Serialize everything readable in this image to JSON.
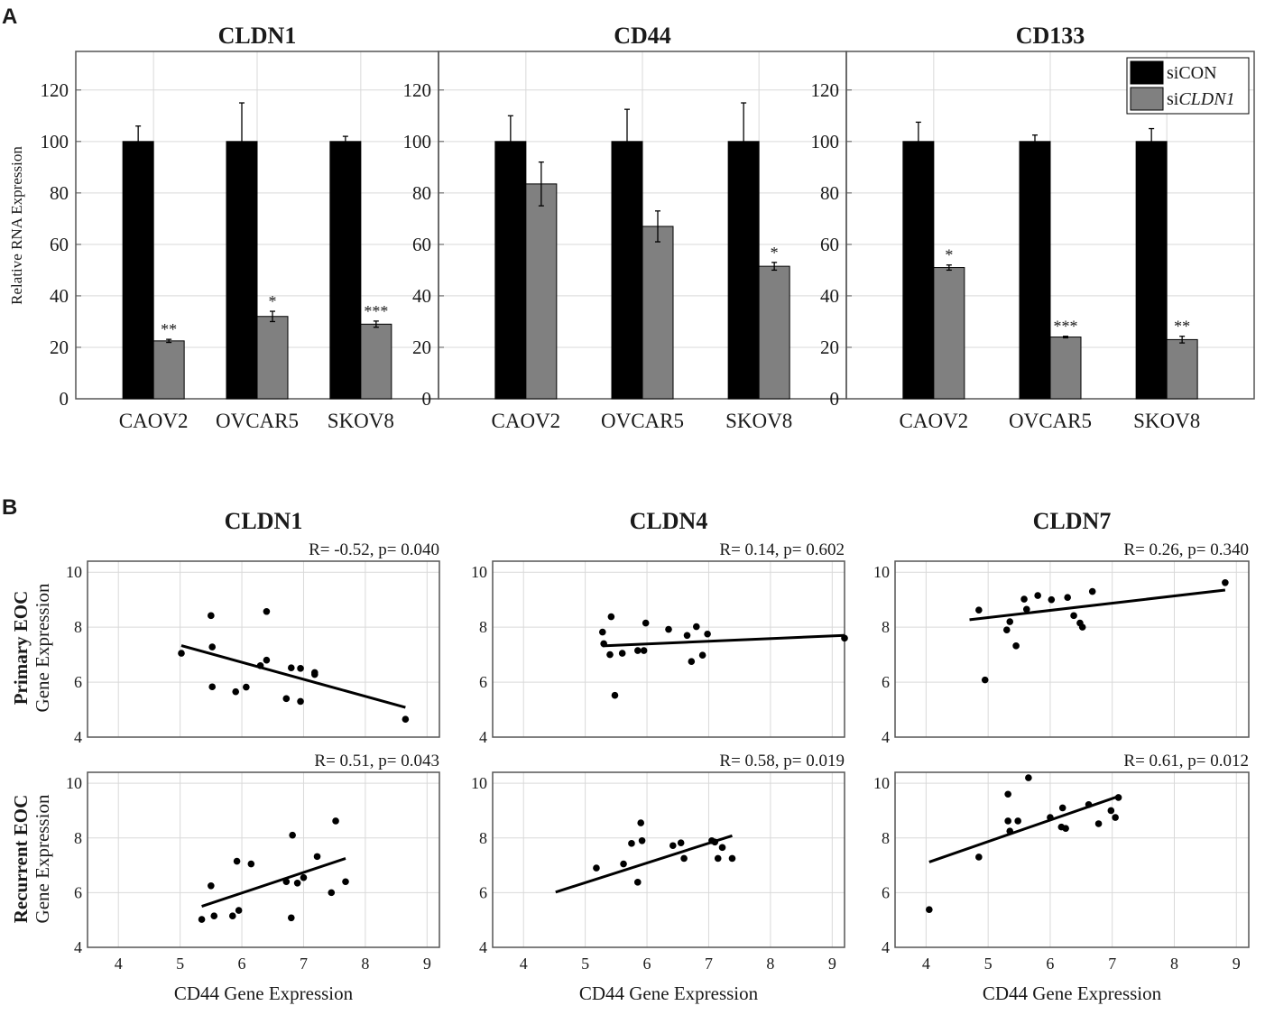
{
  "panel_labels": {
    "a": "A",
    "b": "B"
  },
  "colors": {
    "siCON": "#000000",
    "siCLDN1": "#808080",
    "grid": "#d9d9d9",
    "axis": "#555555"
  },
  "chart_data": [
    {
      "type": "bar",
      "panel": "A",
      "title": "CLDN1",
      "ylabel": "Relative RNA Expression",
      "ylim": [
        0,
        135
      ],
      "yticks": [
        0,
        20,
        40,
        60,
        80,
        100,
        120
      ],
      "categories": [
        "CAOV2",
        "OVCAR5",
        "SKOV8"
      ],
      "series": [
        {
          "name": "siCON",
          "values": [
            100,
            100,
            100
          ],
          "errors": [
            6,
            15,
            2
          ]
        },
        {
          "name": "siCLDN1",
          "values": [
            22.5,
            32,
            29
          ],
          "errors": [
            0.6,
            2,
            1.2
          ]
        }
      ],
      "significance": [
        "**",
        "*",
        "***"
      ]
    },
    {
      "type": "bar",
      "panel": "A",
      "title": "CD44",
      "ylim": [
        0,
        135
      ],
      "yticks": [
        0,
        20,
        40,
        60,
        80,
        100,
        120
      ],
      "categories": [
        "CAOV2",
        "OVCAR5",
        "SKOV8"
      ],
      "series": [
        {
          "name": "siCON",
          "values": [
            100,
            100,
            100
          ],
          "errors": [
            10,
            12.5,
            15
          ]
        },
        {
          "name": "siCLDN1",
          "values": [
            83.5,
            67,
            51.5
          ],
          "errors": [
            8.5,
            6,
            1.5
          ]
        }
      ],
      "significance": [
        "",
        "",
        "*"
      ]
    },
    {
      "type": "bar",
      "panel": "A",
      "title": "CD133",
      "ylim": [
        0,
        135
      ],
      "yticks": [
        0,
        20,
        40,
        60,
        80,
        100,
        120
      ],
      "categories": [
        "CAOV2",
        "OVCAR5",
        "SKOV8"
      ],
      "series": [
        {
          "name": "siCON",
          "values": [
            100,
            100,
            100
          ],
          "errors": [
            7.5,
            2.5,
            5
          ]
        },
        {
          "name": "siCLDN1",
          "values": [
            51,
            24,
            23
          ],
          "errors": [
            1,
            0.3,
            1.3
          ]
        }
      ],
      "significance": [
        "*",
        "***",
        "**"
      ],
      "legend": {
        "placement": "top-right",
        "entries": [
          {
            "prefix": "si",
            "name": "CON",
            "italic": false
          },
          {
            "prefix": "si",
            "name": "CLDN1",
            "italic": true
          }
        ]
      }
    },
    {
      "type": "scatter",
      "panel": "B",
      "title": "CLDN1",
      "row": "Primary EOC",
      "stat": "R= -0.52, p= 0.040",
      "xlim": [
        3.5,
        9.2
      ],
      "ylim": [
        4,
        10.4
      ],
      "xticks": [
        4,
        5,
        6,
        7,
        8,
        9
      ],
      "yticks": [
        4,
        6,
        8,
        10
      ],
      "points": [
        [
          5.02,
          7.05
        ],
        [
          5.5,
          8.42
        ],
        [
          5.52,
          7.28
        ],
        [
          5.52,
          5.83
        ],
        [
          5.9,
          5.65
        ],
        [
          6.07,
          5.82
        ],
        [
          6.3,
          6.6
        ],
        [
          6.4,
          8.57
        ],
        [
          6.4,
          6.8
        ],
        [
          6.72,
          5.4
        ],
        [
          6.8,
          6.52
        ],
        [
          6.95,
          6.5
        ],
        [
          6.95,
          5.3
        ],
        [
          7.18,
          6.35
        ],
        [
          7.18,
          6.28
        ],
        [
          8.65,
          4.65
        ]
      ],
      "fit": [
        [
          5.02,
          7.33
        ],
        [
          8.65,
          5.08
        ]
      ]
    },
    {
      "type": "scatter",
      "panel": "B",
      "title": "CLDN4",
      "row": "Primary EOC",
      "stat": "R= 0.14, p= 0.602",
      "xlim": [
        3.5,
        9.2
      ],
      "ylim": [
        4,
        10.4
      ],
      "xticks": [
        4,
        5,
        6,
        7,
        8,
        9
      ],
      "yticks": [
        4,
        6,
        8,
        10
      ],
      "points": [
        [
          5.28,
          7.82
        ],
        [
          5.3,
          7.4
        ],
        [
          5.4,
          7.0
        ],
        [
          5.42,
          8.38
        ],
        [
          5.48,
          5.52
        ],
        [
          5.6,
          7.05
        ],
        [
          5.85,
          7.15
        ],
        [
          5.95,
          7.15
        ],
        [
          5.98,
          8.15
        ],
        [
          6.35,
          7.92
        ],
        [
          6.65,
          7.7
        ],
        [
          6.72,
          6.75
        ],
        [
          6.8,
          8.02
        ],
        [
          6.9,
          6.98
        ],
        [
          6.98,
          7.75
        ],
        [
          9.2,
          7.6
        ]
      ],
      "fit": [
        [
          5.28,
          7.32
        ],
        [
          9.2,
          7.7
        ]
      ]
    },
    {
      "type": "scatter",
      "panel": "B",
      "title": "CLDN7",
      "row": "Primary EOC",
      "stat": "R= 0.26, p= 0.340",
      "xlim": [
        3.5,
        9.2
      ],
      "ylim": [
        4,
        10.4
      ],
      "xticks": [
        4,
        5,
        6,
        7,
        8,
        9
      ],
      "yticks": [
        4,
        6,
        8,
        10
      ],
      "points": [
        [
          4.85,
          8.62
        ],
        [
          4.95,
          6.08
        ],
        [
          5.3,
          7.9
        ],
        [
          5.35,
          8.2
        ],
        [
          5.45,
          7.32
        ],
        [
          5.58,
          9.02
        ],
        [
          5.62,
          8.65
        ],
        [
          5.8,
          9.15
        ],
        [
          6.02,
          9.0
        ],
        [
          6.28,
          9.08
        ],
        [
          6.38,
          8.42
        ],
        [
          6.48,
          8.15
        ],
        [
          6.52,
          8.0
        ],
        [
          6.68,
          9.3
        ],
        [
          8.82,
          9.62
        ]
      ],
      "fit": [
        [
          4.7,
          8.27
        ],
        [
          8.82,
          9.35
        ]
      ]
    },
    {
      "type": "scatter",
      "panel": "B",
      "title": "",
      "row": "Recurrent EOC",
      "stat": "R= 0.51, p= 0.043",
      "xlim": [
        3.5,
        9.2
      ],
      "ylim": [
        4,
        10.4
      ],
      "xticks": [
        4,
        5,
        6,
        7,
        8,
        9
      ],
      "yticks": [
        4,
        6,
        8,
        10
      ],
      "points": [
        [
          5.35,
          5.02
        ],
        [
          5.5,
          6.25
        ],
        [
          5.55,
          5.15
        ],
        [
          5.85,
          5.15
        ],
        [
          5.92,
          7.15
        ],
        [
          5.95,
          5.35
        ],
        [
          6.15,
          7.05
        ],
        [
          6.72,
          6.4
        ],
        [
          6.8,
          5.08
        ],
        [
          6.82,
          8.1
        ],
        [
          6.9,
          6.35
        ],
        [
          7.0,
          6.55
        ],
        [
          7.22,
          7.32
        ],
        [
          7.45,
          6.0
        ],
        [
          7.52,
          8.62
        ],
        [
          7.68,
          6.4
        ]
      ],
      "fit": [
        [
          5.35,
          5.5
        ],
        [
          7.68,
          7.25
        ]
      ]
    },
    {
      "type": "scatter",
      "panel": "B",
      "title": "",
      "row": "Recurrent EOC",
      "stat": "R= 0.58, p= 0.019",
      "xlim": [
        3.5,
        9.2
      ],
      "ylim": [
        4,
        10.4
      ],
      "xticks": [
        4,
        5,
        6,
        7,
        8,
        9
      ],
      "yticks": [
        4,
        6,
        8,
        10
      ],
      "points": [
        [
          5.18,
          6.9
        ],
        [
          5.62,
          7.05
        ],
        [
          5.75,
          7.8
        ],
        [
          5.85,
          6.38
        ],
        [
          5.9,
          8.55
        ],
        [
          5.92,
          7.9
        ],
        [
          6.42,
          7.72
        ],
        [
          6.55,
          7.82
        ],
        [
          6.6,
          7.25
        ],
        [
          7.05,
          7.9
        ],
        [
          7.1,
          7.85
        ],
        [
          7.15,
          7.25
        ],
        [
          7.22,
          7.65
        ],
        [
          7.38,
          7.25
        ]
      ],
      "fit": [
        [
          4.52,
          6.02
        ],
        [
          7.38,
          8.08
        ]
      ]
    },
    {
      "type": "scatter",
      "panel": "B",
      "title": "",
      "row": "Recurrent EOC",
      "stat": "R= 0.61, p= 0.012",
      "xlim": [
        3.5,
        9.2
      ],
      "ylim": [
        4,
        10.4
      ],
      "xticks": [
        4,
        5,
        6,
        7,
        8,
        9
      ],
      "yticks": [
        4,
        6,
        8,
        10
      ],
      "points": [
        [
          4.05,
          5.38
        ],
        [
          4.85,
          7.3
        ],
        [
          5.32,
          9.6
        ],
        [
          5.32,
          8.62
        ],
        [
          5.35,
          8.25
        ],
        [
          5.48,
          8.62
        ],
        [
          5.65,
          10.2
        ],
        [
          6.0,
          8.75
        ],
        [
          6.18,
          8.4
        ],
        [
          6.2,
          9.1
        ],
        [
          6.25,
          8.35
        ],
        [
          6.62,
          9.22
        ],
        [
          6.78,
          8.52
        ],
        [
          6.98,
          9.0
        ],
        [
          7.05,
          8.75
        ],
        [
          7.1,
          9.48
        ]
      ],
      "fit": [
        [
          4.05,
          7.12
        ],
        [
          7.1,
          9.52
        ]
      ]
    }
  ],
  "panelB_labels": {
    "xlabel": "CD44 Gene Expression",
    "row1_bold": "Primary EOC",
    "row2_bold": "Recurrent EOC",
    "row_sub": "Gene Expression"
  }
}
